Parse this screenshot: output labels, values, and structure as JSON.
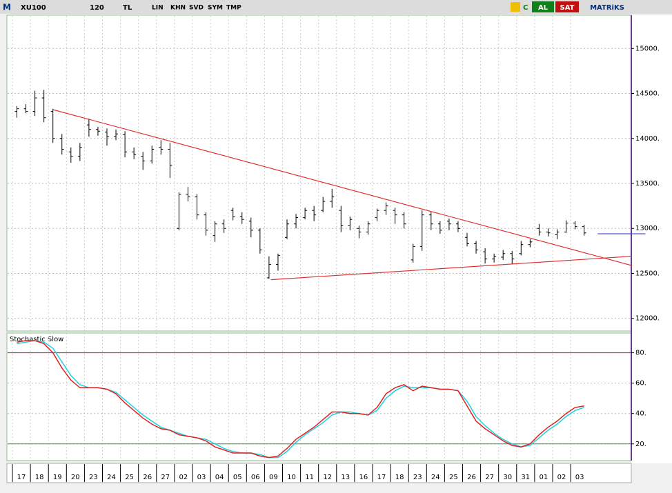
{
  "toolbar": {
    "menu": "M",
    "symbol": "XU100",
    "period": "120",
    "currency": "TL",
    "buttons": [
      "LIN",
      "KHN",
      "SVD",
      "SYM",
      "TMP"
    ],
    "c": "C",
    "buy": "AL",
    "sell": "SAT",
    "brand": "MATRiKS"
  },
  "chart_data": [
    {
      "type": "ohlc",
      "color": "#000000",
      "ylim": [
        11860,
        15370
      ],
      "yticks": [
        {
          "value": 12000,
          "label": "12000."
        },
        {
          "value": 12500,
          "label": "12500."
        },
        {
          "value": 13000,
          "label": "13000."
        },
        {
          "value": 13500,
          "label": "13500."
        },
        {
          "value": 14000,
          "label": "14000."
        },
        {
          "value": 14500,
          "label": "14500."
        },
        {
          "value": 15000,
          "label": "15000."
        }
      ],
      "grid": true,
      "days": [
        "17",
        "18",
        "19",
        "20",
        "23",
        "24",
        "25",
        "26",
        "27",
        "02",
        "03",
        "04",
        "05",
        "06",
        "09",
        "10",
        "11",
        "12",
        "13",
        "16",
        "17",
        "18",
        "23",
        "24",
        "25",
        "26",
        "27",
        "30",
        "31",
        "01",
        "02",
        "03"
      ],
      "open": [
        14300,
        14330,
        14300,
        14450,
        14300,
        14000,
        13850,
        13800,
        14150,
        14100,
        14070,
        14020,
        14040,
        13850,
        13800,
        13750,
        13900,
        13880,
        13000,
        13380,
        13350,
        13150,
        12920,
        13050,
        13200,
        13130,
        13080,
        12980,
        12450,
        12600,
        12900,
        13050,
        13120,
        13200,
        13200,
        13300,
        13200,
        13030,
        13000,
        12960,
        13120,
        13200,
        13200,
        13150,
        12650,
        12800,
        13150,
        13050,
        13080,
        13050,
        12900,
        12830,
        12740,
        12660,
        12680,
        12720,
        12720,
        12820,
        13000,
        12960,
        12930,
        12960,
        13060,
        13020
      ],
      "high": [
        14360,
        14380,
        14530,
        14540,
        14330,
        14050,
        13900,
        13950,
        14220,
        14130,
        14110,
        14100,
        14080,
        13900,
        13850,
        13920,
        13980,
        13950,
        13400,
        13460,
        13380,
        13180,
        13080,
        13100,
        13230,
        13180,
        13120,
        13000,
        12690,
        12720,
        13100,
        13160,
        13230,
        13250,
        13350,
        13440,
        13250,
        13130,
        13030,
        13080,
        13220,
        13290,
        13230,
        13180,
        12830,
        13200,
        13180,
        13080,
        13110,
        13080,
        12950,
        12860,
        12780,
        12720,
        12760,
        12750,
        12860,
        12880,
        13050,
        13000,
        12990,
        13090,
        13080,
        13040
      ],
      "low": [
        14230,
        14280,
        14250,
        14180,
        13950,
        13820,
        13730,
        13750,
        14020,
        14030,
        13920,
        13980,
        13790,
        13770,
        13650,
        13720,
        13820,
        13560,
        12980,
        13300,
        13100,
        12920,
        12850,
        12950,
        13090,
        13050,
        12900,
        12720,
        12440,
        12530,
        12880,
        13000,
        13100,
        13080,
        13180,
        13230,
        12960,
        12980,
        12890,
        12930,
        13080,
        13150,
        13050,
        13000,
        12620,
        12750,
        12980,
        12940,
        12980,
        12960,
        12800,
        12720,
        12610,
        12620,
        12650,
        12600,
        12700,
        12790,
        12920,
        12910,
        12880,
        12950,
        12990,
        12920
      ],
      "close": [
        14330,
        14300,
        14450,
        14230,
        14000,
        13880,
        13800,
        13900,
        14100,
        14080,
        14020,
        14050,
        13850,
        13820,
        13750,
        13880,
        13880,
        13700,
        13380,
        13350,
        13150,
        12980,
        13050,
        13000,
        13130,
        13100,
        12980,
        12760,
        12600,
        12700,
        13050,
        13120,
        13200,
        13150,
        13300,
        13350,
        13030,
        13100,
        12960,
        13050,
        13200,
        13250,
        13150,
        13050,
        12800,
        13150,
        13050,
        12980,
        13050,
        13000,
        12830,
        12760,
        12660,
        12690,
        12720,
        12660,
        12820,
        12850,
        12960,
        12950,
        12960,
        13060,
        13020,
        12950
      ],
      "trendlines": [
        {
          "color": "#e03030",
          "x": [
            4,
            68.2
          ],
          "y": [
            14320,
            12590
          ]
        },
        {
          "color": "#e03030",
          "x": [
            28.2,
            68.2
          ],
          "y": [
            12430,
            12690
          ]
        },
        {
          "color": "#3333cc",
          "x": [
            64.5,
            69.8
          ],
          "y": [
            12940,
            12940
          ]
        }
      ]
    },
    {
      "type": "line",
      "title": "Stochastic Slow",
      "ylim": [
        9,
        93
      ],
      "yticks": [
        {
          "value": 20,
          "label": "20."
        },
        {
          "value": 40,
          "label": "40."
        },
        {
          "value": 60,
          "label": "60."
        },
        {
          "value": 80,
          "label": "80."
        }
      ],
      "grid": true,
      "levels": [
        {
          "value": 80,
          "color": "#a03030"
        },
        {
          "value": 20,
          "color": "#30a030"
        }
      ],
      "series": [
        {
          "color": "#e02020",
          "values": [
            87,
            88,
            88,
            86,
            80,
            70,
            62,
            57,
            57,
            57,
            56,
            53,
            47,
            42,
            37,
            33,
            30,
            29,
            26,
            25,
            24,
            22,
            18,
            16,
            14,
            14,
            14,
            12,
            11,
            12,
            17,
            23,
            27,
            31,
            36,
            41,
            41,
            40,
            40,
            39,
            44,
            53,
            57,
            59,
            55,
            58,
            57,
            56,
            56,
            55,
            45,
            35,
            30,
            26,
            22,
            19,
            18,
            20,
            26,
            31,
            35,
            40,
            44,
            45
          ]
        },
        {
          "color": "#20d0e0",
          "values": [
            86,
            87,
            88,
            87,
            83,
            74,
            65,
            59,
            57,
            57,
            56,
            54,
            49,
            44,
            39,
            35,
            31,
            29,
            27,
            25,
            24,
            23,
            20,
            17,
            15,
            14,
            14,
            13,
            11,
            11,
            15,
            21,
            26,
            30,
            34,
            39,
            41,
            41,
            40,
            39,
            42,
            50,
            55,
            58,
            57,
            57,
            57,
            56,
            56,
            55,
            48,
            38,
            32,
            27,
            23,
            20,
            18,
            19,
            24,
            29,
            33,
            38,
            42,
            44
          ]
        }
      ]
    }
  ]
}
